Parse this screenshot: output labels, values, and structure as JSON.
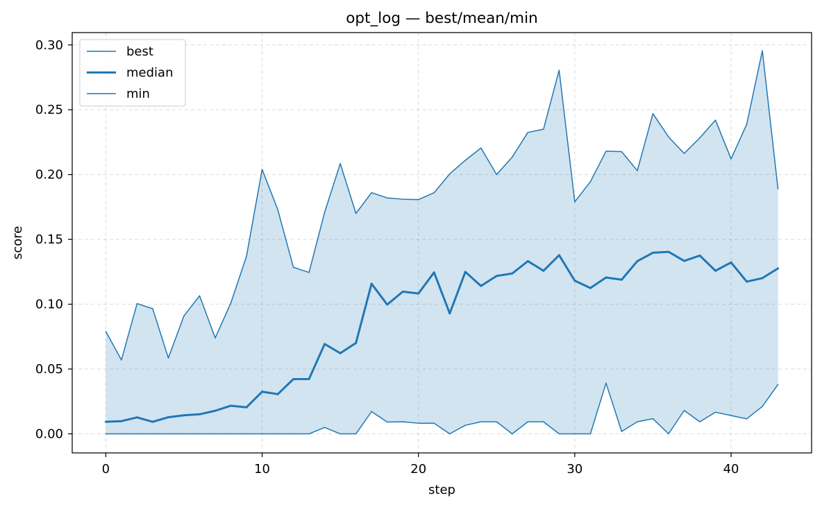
{
  "chart_data": {
    "type": "line",
    "title": "opt_log — best/mean/min",
    "xlabel": "step",
    "ylabel": "score",
    "xlim": [
      -2.15,
      45.15
    ],
    "ylim": [
      -0.0147,
      0.3095
    ],
    "x_ticks": [
      0,
      10,
      20,
      30,
      40
    ],
    "y_ticks": [
      0.0,
      0.05,
      0.1,
      0.15,
      0.2,
      0.25,
      0.3
    ],
    "x_tick_labels": [
      "0",
      "10",
      "20",
      "30",
      "40"
    ],
    "y_tick_labels": [
      "0.00",
      "0.05",
      "0.10",
      "0.15",
      "0.20",
      "0.25",
      "0.30"
    ],
    "grid": true,
    "legend_position": "upper-left",
    "colors": {
      "line": "#1f77b4",
      "fill": "#1f77b4",
      "grid": "#b0b0b0"
    },
    "x": [
      0,
      1,
      2,
      3,
      4,
      5,
      6,
      7,
      8,
      9,
      10,
      11,
      12,
      13,
      14,
      15,
      16,
      17,
      18,
      19,
      20,
      21,
      22,
      23,
      24,
      25,
      26,
      27,
      28,
      29,
      30,
      31,
      32,
      33,
      34,
      35,
      36,
      37,
      38,
      39,
      40,
      41,
      42,
      43
    ],
    "series": [
      {
        "name": "best",
        "style": "thin",
        "values": [
          0.079,
          0.057,
          0.1005,
          0.0965,
          0.0585,
          0.091,
          0.1065,
          0.074,
          0.101,
          0.137,
          0.204,
          0.173,
          0.1285,
          0.1245,
          0.171,
          0.2085,
          0.17,
          0.186,
          0.182,
          0.181,
          0.1807,
          0.186,
          0.2005,
          0.211,
          0.2205,
          0.2,
          0.2135,
          0.2325,
          0.235,
          0.2805,
          0.179,
          0.1945,
          0.218,
          0.2177,
          0.203,
          0.247,
          0.229,
          0.2163,
          0.2283,
          0.242,
          0.2121,
          0.2388,
          0.2955,
          0.189
        ]
      },
      {
        "name": "median",
        "style": "thick",
        "values": [
          0.0093,
          0.0098,
          0.0127,
          0.0093,
          0.0128,
          0.0143,
          0.0151,
          0.0178,
          0.0217,
          0.0205,
          0.0325,
          0.0306,
          0.0422,
          0.0423,
          0.0693,
          0.0622,
          0.0701,
          0.1158,
          0.0997,
          0.1097,
          0.1083,
          0.1245,
          0.0929,
          0.1249,
          0.1141,
          0.1218,
          0.1237,
          0.1332,
          0.1258,
          0.1378,
          0.1181,
          0.1125,
          0.1206,
          0.1189,
          0.1332,
          0.1397,
          0.1404,
          0.1334,
          0.1375,
          0.1258,
          0.1322,
          0.1174,
          0.1201,
          0.1276
        ]
      },
      {
        "name": "min",
        "style": "thin",
        "values": [
          0,
          0,
          0,
          0,
          0,
          0,
          0,
          0,
          0,
          0,
          0,
          0,
          0,
          0,
          0.0049,
          0,
          0,
          0.0172,
          0.0091,
          0.0093,
          0.0082,
          0.0082,
          0,
          0.0066,
          0.0093,
          0.0093,
          0,
          0.0093,
          0.0093,
          0,
          0,
          0,
          0.0391,
          0.0018,
          0.0093,
          0.0117,
          0,
          0.018,
          0.0093,
          0.0167,
          0.0141,
          0.0116,
          0.0211,
          0.0381
        ]
      }
    ]
  }
}
